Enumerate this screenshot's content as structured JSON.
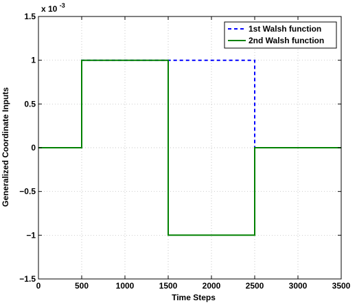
{
  "chart_data": {
    "type": "line",
    "title": "",
    "xlabel": "Time Steps",
    "ylabel": "Generalized Coordinate Inputs",
    "y_exponent_label": "x 10",
    "y_exponent_power": "-3",
    "xlim": [
      0,
      3500
    ],
    "ylim": [
      -1.5,
      1.5
    ],
    "y_scale_factor": 0.001,
    "x_ticks": [
      0,
      500,
      1000,
      1500,
      2000,
      2500,
      3000,
      3500
    ],
    "x_tick_labels": [
      "0",
      "500",
      "1000",
      "1500",
      "2000",
      "2500",
      "3000",
      "3500"
    ],
    "y_ticks": [
      -1.5,
      -1,
      -0.5,
      0,
      0.5,
      1,
      1.5
    ],
    "y_tick_labels": [
      "−1.5",
      "−1",
      "−0.5",
      "0",
      "0.5",
      "1",
      "1.5"
    ],
    "grid": true,
    "legend_position": "top-right",
    "series": [
      {
        "name": "1st Walsh function",
        "color": "#0000ff",
        "style": "dashed",
        "x": [
          0,
          500,
          500,
          2500,
          2500,
          3500
        ],
        "y": [
          0,
          0,
          1,
          1,
          0,
          0
        ]
      },
      {
        "name": "2nd Walsh function",
        "color": "#008000",
        "style": "solid",
        "x": [
          0,
          500,
          500,
          1500,
          1500,
          2500,
          2500,
          3500
        ],
        "y": [
          0,
          0,
          1,
          1,
          -1,
          -1,
          0,
          0
        ]
      }
    ]
  }
}
